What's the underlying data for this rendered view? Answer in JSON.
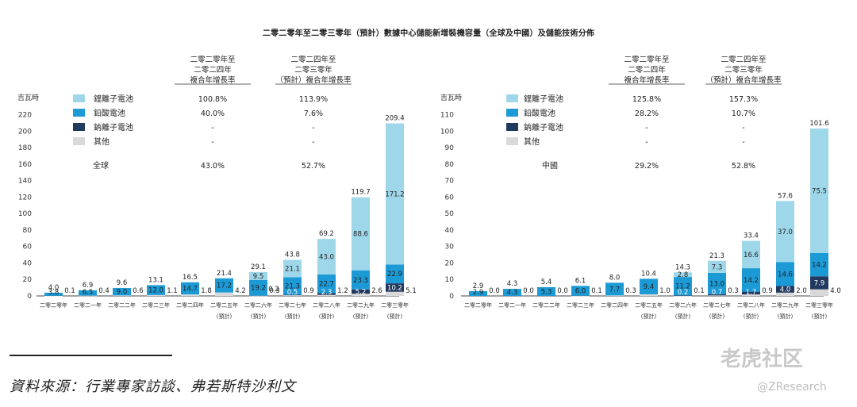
{
  "title": "二零二零年至二零三零年（預計）數據中心儲能新增裝機容量（全球及中國）及儲能技術分佈",
  "source": "資料來源：行業專家訪談、弗若斯特沙利文",
  "watermark": {
    "logo": "老虎社区",
    "handle": "@ZResearch"
  },
  "colors": {
    "li": "#9fd7ea",
    "pb": "#1c9ad6",
    "na": "#22395f",
    "other": "#d9d9d9"
  },
  "chart_data": [
    {
      "type": "bar",
      "stacked": true,
      "region": "全球",
      "ylabel": "吉瓦時",
      "ylim": [
        0,
        220
      ],
      "yticks": [
        0,
        20,
        40,
        60,
        80,
        100,
        120,
        140,
        160,
        180,
        200,
        220
      ],
      "categories": [
        [
          "二零二零年",
          ""
        ],
        [
          "二零二一年",
          ""
        ],
        [
          "二零二二年",
          ""
        ],
        [
          "二零二三年",
          ""
        ],
        [
          "二零二四年",
          ""
        ],
        [
          "二零二五年",
          "(預計)"
        ],
        [
          "二零二六年",
          "(預計)"
        ],
        [
          "二零二七年",
          "(預計)"
        ],
        [
          "二零二八年",
          "(預計)"
        ],
        [
          "二零二九年",
          "(預計)"
        ],
        [
          "二零三零年",
          "(預計)"
        ]
      ],
      "series": [
        {
          "name": "鋰離子電池",
          "values": [
            null,
            null,
            null,
            null,
            null,
            null,
            9.5,
            21.1,
            43.0,
            88.6,
            171.2
          ]
        },
        {
          "name": "鉛酸電池",
          "values": [
            3.8,
            6.5,
            9.0,
            12.0,
            14.7,
            17.2,
            19.2,
            21.3,
            22.7,
            23.3,
            22.9
          ]
        },
        {
          "name": "鈉離子電池",
          "values": [
            null,
            null,
            null,
            null,
            null,
            null,
            null,
            0.5,
            2.3,
            5.2,
            10.2
          ]
        },
        {
          "name": "其他",
          "values": [
            0.1,
            0.4,
            0.6,
            1.1,
            1.8,
            4.2,
            0.3,
            0.9,
            1.2,
            2.6,
            5.1
          ]
        }
      ],
      "totals": [
        4.0,
        6.9,
        9.6,
        13.1,
        16.5,
        21.4,
        29.1,
        43.8,
        69.2,
        119.7,
        209.4
      ],
      "extra_labels": [
        {
          "index": 6,
          "value": "0.2"
        }
      ],
      "cagr_table": {
        "headers": [
          [
            "二零二零年至",
            "二零二四年",
            "複合年增長率"
          ],
          [
            "二零二四年至",
            "二零三零年",
            "（預計）複合年增長率"
          ]
        ],
        "rows": [
          [
            "鋰離子電池",
            "100.8%",
            "113.9%"
          ],
          [
            "鉛酸電池",
            "40.0%",
            "7.6%"
          ],
          [
            "鈉離子電池",
            "-",
            "-"
          ],
          [
            "其他",
            "-",
            "-"
          ],
          [
            "全球",
            "43.0%",
            "52.7%"
          ]
        ]
      }
    },
    {
      "type": "bar",
      "stacked": true,
      "region": "中國",
      "ylabel": "吉瓦時",
      "ylim": [
        0,
        110
      ],
      "yticks": [
        0,
        10,
        20,
        30,
        40,
        50,
        60,
        70,
        80,
        90,
        100,
        110
      ],
      "categories": [
        [
          "二零二零年",
          ""
        ],
        [
          "二零二一年",
          ""
        ],
        [
          "二零二二年",
          ""
        ],
        [
          "二零二三年",
          ""
        ],
        [
          "二零二四年",
          ""
        ],
        [
          "二零二五年",
          "(預計)"
        ],
        [
          "二零二六年",
          "(預計)"
        ],
        [
          "二零二七年",
          "(預計)"
        ],
        [
          "二零二八年",
          "(預計)"
        ],
        [
          "二零二九年",
          "(預計)"
        ],
        [
          "二零三零年",
          "(預計)"
        ]
      ],
      "series": [
        {
          "name": "鋰離子電池",
          "values": [
            null,
            null,
            null,
            null,
            null,
            null,
            2.8,
            7.3,
            16.6,
            37.0,
            75.5
          ]
        },
        {
          "name": "鉛酸電池",
          "values": [
            2.9,
            4.3,
            5.3,
            6.0,
            7.7,
            9.4,
            11.2,
            13.0,
            14.2,
            14.6,
            14.2
          ]
        },
        {
          "name": "鈉離子電池",
          "values": [
            null,
            null,
            null,
            null,
            null,
            null,
            0.2,
            0.7,
            1.7,
            4.0,
            7.9
          ]
        },
        {
          "name": "其他",
          "values": [
            0.0,
            0.0,
            0.0,
            0.1,
            0.3,
            1.0,
            0.1,
            0.3,
            0.9,
            2.0,
            4.0
          ]
        }
      ],
      "totals": [
        2.9,
        4.3,
        5.4,
        6.1,
        8.0,
        10.4,
        14.3,
        21.3,
        33.4,
        57.6,
        101.6
      ],
      "extra_labels": [],
      "cagr_table": {
        "headers": [
          [
            "二零二零年至",
            "二零二四年",
            "複合年增長率"
          ],
          [
            "二零二四年至",
            "二零三零年",
            "（預計）複合年增長率"
          ]
        ],
        "rows": [
          [
            "鋰離子電池",
            "125.8%",
            "157.3%"
          ],
          [
            "鉛酸電池",
            "28.2%",
            "10.7%"
          ],
          [
            "鈉離子電池",
            "-",
            "-"
          ],
          [
            "其他",
            "-",
            "-"
          ],
          [
            "中國",
            "29.2%",
            "52.8%"
          ]
        ]
      }
    }
  ]
}
